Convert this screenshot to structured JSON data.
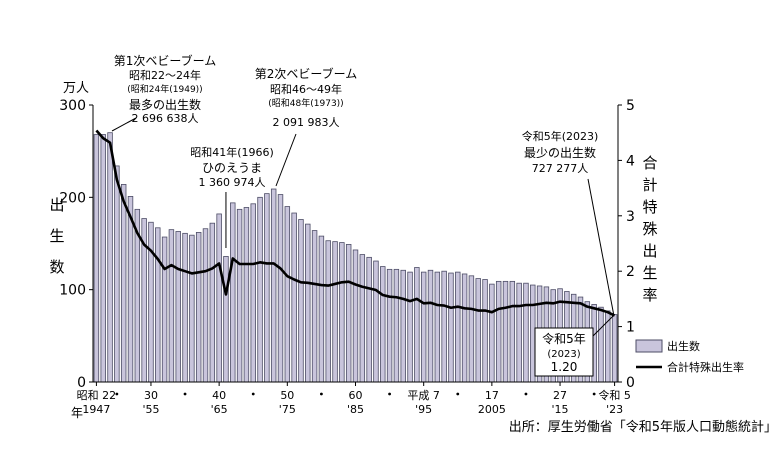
{
  "chart_data": {
    "type": "bar",
    "x": [
      1947,
      1948,
      1949,
      1950,
      1951,
      1952,
      1953,
      1954,
      1955,
      1956,
      1957,
      1958,
      1959,
      1960,
      1961,
      1962,
      1963,
      1964,
      1965,
      1966,
      1967,
      1968,
      1969,
      1970,
      1971,
      1972,
      1973,
      1974,
      1975,
      1976,
      1977,
      1978,
      1979,
      1980,
      1981,
      1982,
      1983,
      1984,
      1985,
      1986,
      1987,
      1988,
      1989,
      1990,
      1991,
      1992,
      1993,
      1994,
      1995,
      1996,
      1997,
      1998,
      1999,
      2000,
      2001,
      2002,
      2003,
      2004,
      2005,
      2006,
      2007,
      2008,
      2009,
      2010,
      2011,
      2012,
      2013,
      2014,
      2015,
      2016,
      2017,
      2018,
      2019,
      2020,
      2021,
      2022,
      2023
    ],
    "series": [
      {
        "name": "出生数",
        "type": "bar",
        "axis": "left",
        "unit": "万人",
        "values": [
          268,
          268,
          270,
          234,
          214,
          201,
          187,
          177,
          173,
          167,
          157,
          165,
          163,
          161,
          159,
          162,
          166,
          172,
          182,
          136,
          194,
          187,
          189,
          193,
          200,
          204,
          209,
          203,
          190,
          183,
          176,
          171,
          164,
          158,
          153,
          152,
          151,
          149,
          143,
          138,
          135,
          131,
          125,
          122,
          122,
          121,
          119,
          124,
          119,
          121,
          119,
          120,
          118,
          119,
          117,
          115,
          112,
          111,
          106,
          109,
          109,
          109,
          107,
          107,
          105,
          104,
          103,
          100,
          101,
          98,
          95,
          92,
          87,
          84,
          81,
          77,
          73
        ]
      },
      {
        "name": "合計特殊出生率",
        "type": "line",
        "axis": "right",
        "values": [
          4.54,
          4.4,
          4.32,
          3.65,
          3.26,
          2.98,
          2.69,
          2.48,
          2.37,
          2.22,
          2.04,
          2.11,
          2.04,
          2.0,
          1.96,
          1.98,
          2.0,
          2.05,
          2.14,
          1.58,
          2.23,
          2.13,
          2.13,
          2.13,
          2.16,
          2.14,
          2.14,
          2.05,
          1.91,
          1.85,
          1.8,
          1.79,
          1.77,
          1.75,
          1.74,
          1.77,
          1.8,
          1.81,
          1.76,
          1.72,
          1.69,
          1.66,
          1.57,
          1.54,
          1.53,
          1.5,
          1.46,
          1.5,
          1.42,
          1.43,
          1.39,
          1.38,
          1.34,
          1.36,
          1.33,
          1.32,
          1.29,
          1.29,
          1.26,
          1.32,
          1.34,
          1.37,
          1.37,
          1.39,
          1.39,
          1.41,
          1.43,
          1.42,
          1.45,
          1.44,
          1.43,
          1.42,
          1.36,
          1.33,
          1.3,
          1.26,
          1.2
        ]
      }
    ],
    "ylim_left": [
      0,
      300
    ],
    "ylim_right": [
      0,
      5
    ],
    "yticks_left": [
      "0",
      "100",
      "200",
      "300"
    ],
    "yticks_right": [
      "0",
      "1",
      "2",
      "3",
      "4",
      "5"
    ],
    "ylabel_left_unit": "万人",
    "ylabel_left": [
      "出",
      "生",
      "数"
    ],
    "ylabel_right": [
      "合",
      "計",
      "特",
      "殊",
      "出",
      "生",
      "率"
    ],
    "x_era_labels": [
      {
        "year": 1947,
        "text": "昭和 22"
      },
      {
        "year": 1955,
        "text": "30"
      },
      {
        "year": 1965,
        "text": "40"
      },
      {
        "year": 1975,
        "text": "50"
      },
      {
        "year": 1985,
        "text": "60"
      },
      {
        "year": 1995,
        "text": "平成 7"
      },
      {
        "year": 2005,
        "text": "17"
      },
      {
        "year": 2015,
        "text": "27"
      },
      {
        "year": 2023,
        "text": "令和 5"
      }
    ],
    "x_dot_years": [
      1950,
      1960,
      1970,
      1980,
      1990,
      2000,
      2010,
      2020
    ],
    "x_year_labels": [
      {
        "year": 1947,
        "text": "1947"
      },
      {
        "year": 1955,
        "text": "'55"
      },
      {
        "year": 1965,
        "text": "'65"
      },
      {
        "year": 1975,
        "text": "'75"
      },
      {
        "year": 1985,
        "text": "'85"
      },
      {
        "year": 1995,
        "text": "'95"
      },
      {
        "year": 2005,
        "text": "2005"
      },
      {
        "year": 2015,
        "text": "'15"
      },
      {
        "year": 2023,
        "text": "'23"
      }
    ],
    "x_axis_caption": "年",
    "legend": [
      {
        "name": "出生数",
        "kind": "bar"
      },
      {
        "name": "合計特殊出生率",
        "kind": "line"
      }
    ],
    "legend_position": "bottom-right",
    "grid": false,
    "annotations": {
      "boom1": {
        "lines": [
          "第1次ベビーブーム",
          "昭和22～24年",
          "(昭和24年(1949))",
          "最多の出生数",
          "2 696 638人"
        ],
        "year": 1949
      },
      "hinoeuma": {
        "lines": [
          "昭和41年(1966)",
          "ひのえうま",
          "1 360 974人"
        ],
        "year": 1966
      },
      "boom2": {
        "lines": [
          "第2次ベビーブーム",
          "昭和46～49年",
          "(昭和48年(1973))",
          "2 091 983人"
        ],
        "year": 1973
      },
      "min2023": {
        "lines": [
          "令和5年(2023)",
          "最少の出生数",
          "727 277人"
        ],
        "year": 2023
      },
      "tfr2023": {
        "lines": [
          "令和5年",
          "(2023)",
          "1.20"
        ],
        "year": 2023
      }
    },
    "source": "出所：厚生労働省「令和5年版人口動態統計」",
    "colors": {
      "bar_fill": "#c9c5dc",
      "bar_stroke": "#4d4d66",
      "line": "#000000",
      "axis": "#000000",
      "callout_border": "#000000"
    }
  }
}
